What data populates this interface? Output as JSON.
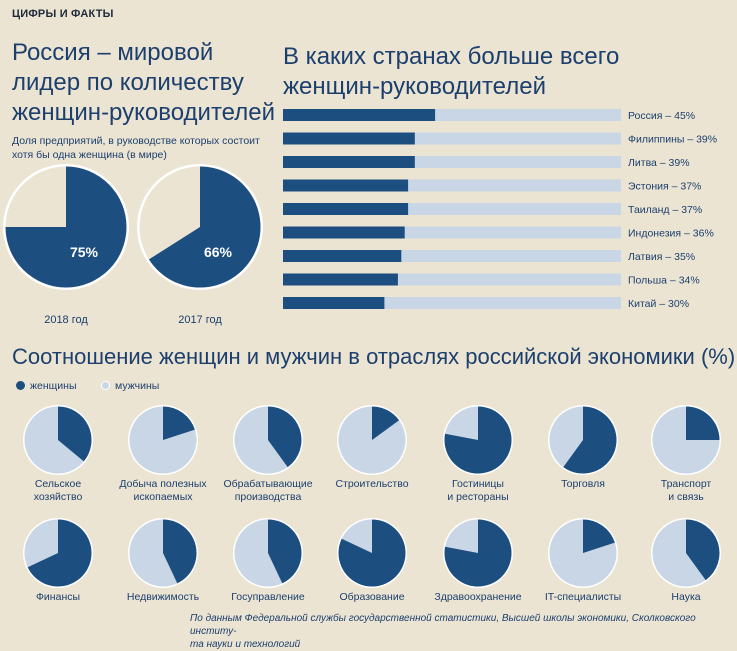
{
  "section_tag": "ЦИФРЫ И ФАКТЫ",
  "left_title": [
    "Россия – мировой",
    "лидер по количеству",
    "женщин-руководителей"
  ],
  "left_note": [
    "Доля предприятий, в руководстве которых состоит",
    "хотя бы одна женщина (в мире)"
  ],
  "right_title": [
    "В каких странах больше всего",
    "женщин-руководителей"
  ],
  "sectors_title": "Соотношение  женщин и мужчин в отраслях российской экономики (%)",
  "legend": {
    "women": "женщины",
    "men": "мужчины"
  },
  "colors": {
    "women": "#1c4e80",
    "men": "#c9d6e6",
    "background": "#ebe4d2",
    "pie_small_outline": "#ffffff"
  },
  "source": [
    "По данным Федеральной службы государственной статистики, Высшей школы экономики, Сколковского институ-",
    "та науки и технологий"
  ],
  "chart_data": [
    {
      "type": "pie",
      "title": "Доля предприятий, в руководстве которых состоит хотя бы одна женщина (в мире)",
      "pies": [
        {
          "label": "2018 год",
          "value": 75,
          "value_label": "75%"
        },
        {
          "label": "2017 год",
          "value": 66,
          "value_label": "66%"
        }
      ]
    },
    {
      "type": "bar",
      "title": "В каких странах больше всего женщин-руководителей",
      "max": 100,
      "categories": [
        "Россия",
        "Филиппины",
        "Литва",
        "Эстония",
        "Таиланд",
        "Индонезия",
        "Латвия",
        "Польша",
        "Китай"
      ],
      "values": [
        45,
        39,
        39,
        37,
        37,
        36,
        35,
        34,
        30
      ],
      "labels": [
        "Россия – 45%",
        "Филиппины – 39%",
        "Литва – 39%",
        "Эстония – 37%",
        "Таиланд – 37%",
        "Индонезия – 36%",
        "Латвия – 35%",
        "Польша – 34%",
        "Китай – 30%"
      ]
    },
    {
      "type": "pie",
      "title": "Соотношение  женщин и мужчин в отраслях российской экономики (%)",
      "series": [
        "женщины",
        "мужчины"
      ],
      "pies": [
        {
          "lines": [
            "Сельское",
            "хозяйство"
          ],
          "women": 36
        },
        {
          "lines": [
            "Добыча полезных",
            "ископаемых"
          ],
          "women": 20
        },
        {
          "lines": [
            "Обрабатывающие",
            "производства"
          ],
          "women": 40
        },
        {
          "lines": [
            "Строительство"
          ],
          "women": 15
        },
        {
          "lines": [
            "Гостиницы",
            "и рестораны"
          ],
          "women": 78
        },
        {
          "lines": [
            "Торговля"
          ],
          "women": 60
        },
        {
          "lines": [
            "Транспорт",
            "и связь"
          ],
          "women": 25
        },
        {
          "lines": [
            "Финансы"
          ],
          "women": 68
        },
        {
          "lines": [
            "Недвижимость"
          ],
          "women": 43
        },
        {
          "lines": [
            "Госуправление"
          ],
          "women": 43
        },
        {
          "lines": [
            "Образование"
          ],
          "women": 82
        },
        {
          "lines": [
            "Здравоохранение"
          ],
          "women": 78
        },
        {
          "lines": [
            "IT-специалисты"
          ],
          "women": 20
        },
        {
          "lines": [
            "Наука"
          ],
          "women": 40
        }
      ]
    }
  ]
}
